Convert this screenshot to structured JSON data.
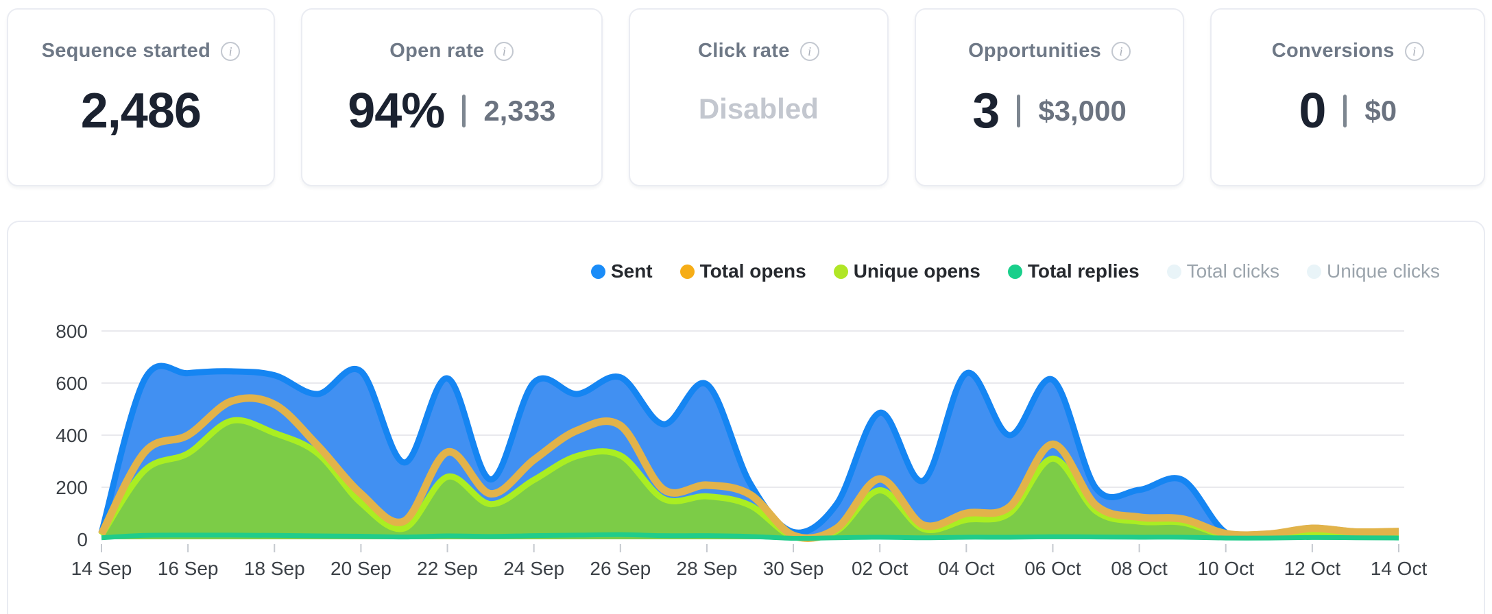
{
  "cards": [
    {
      "label": "Sequence started",
      "value": "2,486"
    },
    {
      "label": "Open rate",
      "value": "94%",
      "secondary": "2,333"
    },
    {
      "label": "Click rate",
      "value": "Disabled",
      "disabled": true
    },
    {
      "label": "Opportunities",
      "value": "3",
      "secondary": "$3,000"
    },
    {
      "label": "Conversions",
      "value": "0",
      "secondary": "$0"
    }
  ],
  "chart_data": {
    "type": "area",
    "title": "",
    "xlabel": "",
    "ylabel": "",
    "ylim": [
      0,
      800
    ],
    "y_ticks": [
      0,
      200,
      400,
      600,
      800
    ],
    "grid": true,
    "legend_position": "top-right",
    "x_tick_labels": [
      "14 Sep",
      "16 Sep",
      "18 Sep",
      "20 Sep",
      "22 Sep",
      "24 Sep",
      "26 Sep",
      "28 Sep",
      "30 Sep",
      "02 Oct",
      "04 Oct",
      "06 Oct",
      "08 Oct",
      "10 Oct",
      "12 Oct",
      "14 Oct"
    ],
    "x_dates": [
      "14 Sep",
      "15 Sep",
      "16 Sep",
      "17 Sep",
      "18 Sep",
      "19 Sep",
      "20 Sep",
      "21 Sep",
      "22 Sep",
      "23 Sep",
      "24 Sep",
      "25 Sep",
      "26 Sep",
      "27 Sep",
      "28 Sep",
      "29 Sep",
      "30 Sep",
      "01 Oct",
      "02 Oct",
      "03 Oct",
      "04 Oct",
      "05 Oct",
      "06 Oct",
      "07 Oct",
      "08 Oct",
      "09 Oct",
      "10 Oct",
      "11 Oct",
      "12 Oct",
      "13 Oct",
      "14 Oct"
    ],
    "series": [
      {
        "name": "Sent",
        "stroke": "#1585f2",
        "fill": "#4190f2",
        "stroke_width": 9,
        "values": [
          25,
          615,
          638,
          645,
          630,
          558,
          645,
          295,
          618,
          230,
          602,
          558,
          622,
          442,
          595,
          215,
          28,
          135,
          486,
          225,
          637,
          400,
          612,
          196,
          190,
          228,
          26,
          22,
          44,
          30,
          30
        ]
      },
      {
        "name": "Unique opens",
        "stroke": "#aaee22",
        "fill": "#7ccc47",
        "stroke_width": 9,
        "values": [
          16,
          265,
          330,
          455,
          408,
          330,
          140,
          42,
          240,
          135,
          228,
          320,
          322,
          155,
          165,
          130,
          10,
          32,
          188,
          40,
          75,
          100,
          310,
          108,
          68,
          64,
          15,
          13,
          26,
          18,
          18
        ]
      },
      {
        "name": "Total opens",
        "stroke": "#e2b34a",
        "fill": "none",
        "stroke_width": 11,
        "values": [
          20,
          335,
          400,
          530,
          518,
          360,
          175,
          70,
          335,
          175,
          305,
          418,
          437,
          191,
          208,
          172,
          15,
          42,
          232,
          55,
          100,
          125,
          365,
          130,
          85,
          78,
          22,
          20,
          42,
          28,
          30
        ]
      },
      {
        "name": "Total replies",
        "stroke": "#20cc8a",
        "fill": "none",
        "stroke_width": 7,
        "values": [
          6,
          15,
          16,
          16,
          15,
          13,
          12,
          9,
          13,
          11,
          14,
          16,
          18,
          14,
          14,
          11,
          4,
          6,
          8,
          6,
          8,
          8,
          10,
          9,
          8,
          8,
          5,
          5,
          7,
          6,
          5
        ]
      }
    ],
    "legend": [
      {
        "label": "Sent",
        "color": "#1a8cf8",
        "enabled": true
      },
      {
        "label": "Total opens",
        "color": "#f6ad17",
        "enabled": true
      },
      {
        "label": "Unique opens",
        "color": "#b0e626",
        "enabled": true
      },
      {
        "label": "Total replies",
        "color": "#19cf8b",
        "enabled": true
      },
      {
        "label": "Total clicks",
        "color": "#e9f4f8",
        "enabled": false
      },
      {
        "label": "Unique clicks",
        "color": "#e9f4f8",
        "enabled": false
      }
    ],
    "style": {
      "grid_color": "#e9e9ed",
      "tick_color": "#c5c9cf",
      "axis_label_color": "#3b4046"
    }
  }
}
